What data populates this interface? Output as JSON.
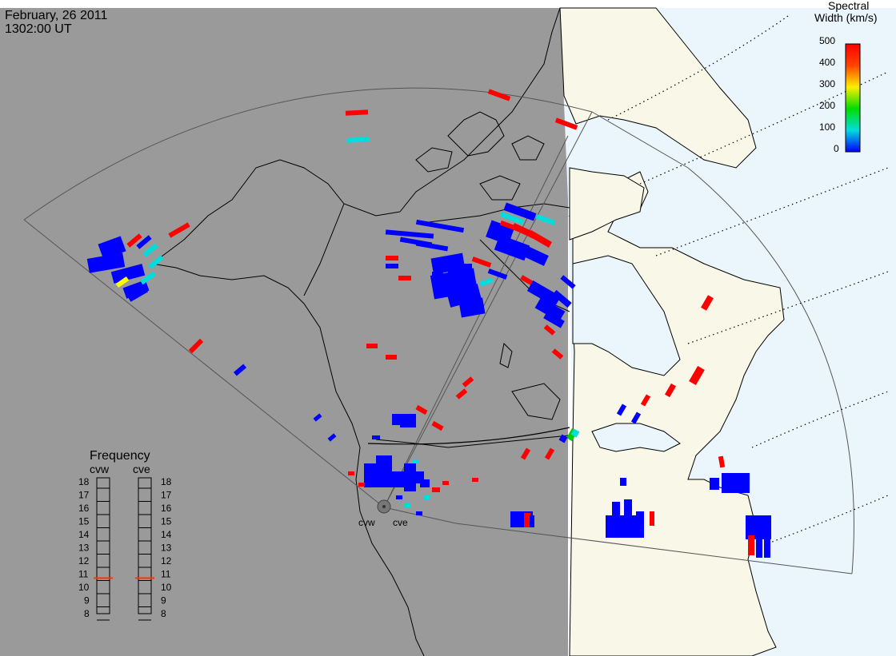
{
  "header": {
    "date": "February, 26 2011",
    "time": "1302:00 UT"
  },
  "colorbar": {
    "title_line1": "Spectral",
    "title_line2": "Width (km/s)",
    "ticks": [
      "500",
      "400",
      "300",
      "200",
      "100",
      "0"
    ],
    "colors": [
      "#ff0000",
      "#ff8800",
      "#ffee00",
      "#00dd00",
      "#00dddd",
      "#0000ff"
    ]
  },
  "frequency_panel": {
    "title": "Frequency",
    "radars": [
      {
        "label": "cvw",
        "current_mhz": 10.7
      },
      {
        "label": "cve",
        "current_mhz": 10.7
      }
    ],
    "ticks": [
      "18",
      "17",
      "16",
      "15",
      "14",
      "13",
      "12",
      "11",
      "10",
      "9",
      "8"
    ]
  },
  "radar_sites": [
    {
      "label": "cvw"
    },
    {
      "label": "cve"
    }
  ],
  "colors": {
    "night": "#9a9a9a",
    "day_ocean": "#eaf6fc",
    "day_land": "#f8f7e8",
    "low_width": "#0000ff",
    "high_width": "#ff0000",
    "mid_width": "#00dddd",
    "yellow_width": "#ffff00",
    "green_width": "#00cc00"
  }
}
